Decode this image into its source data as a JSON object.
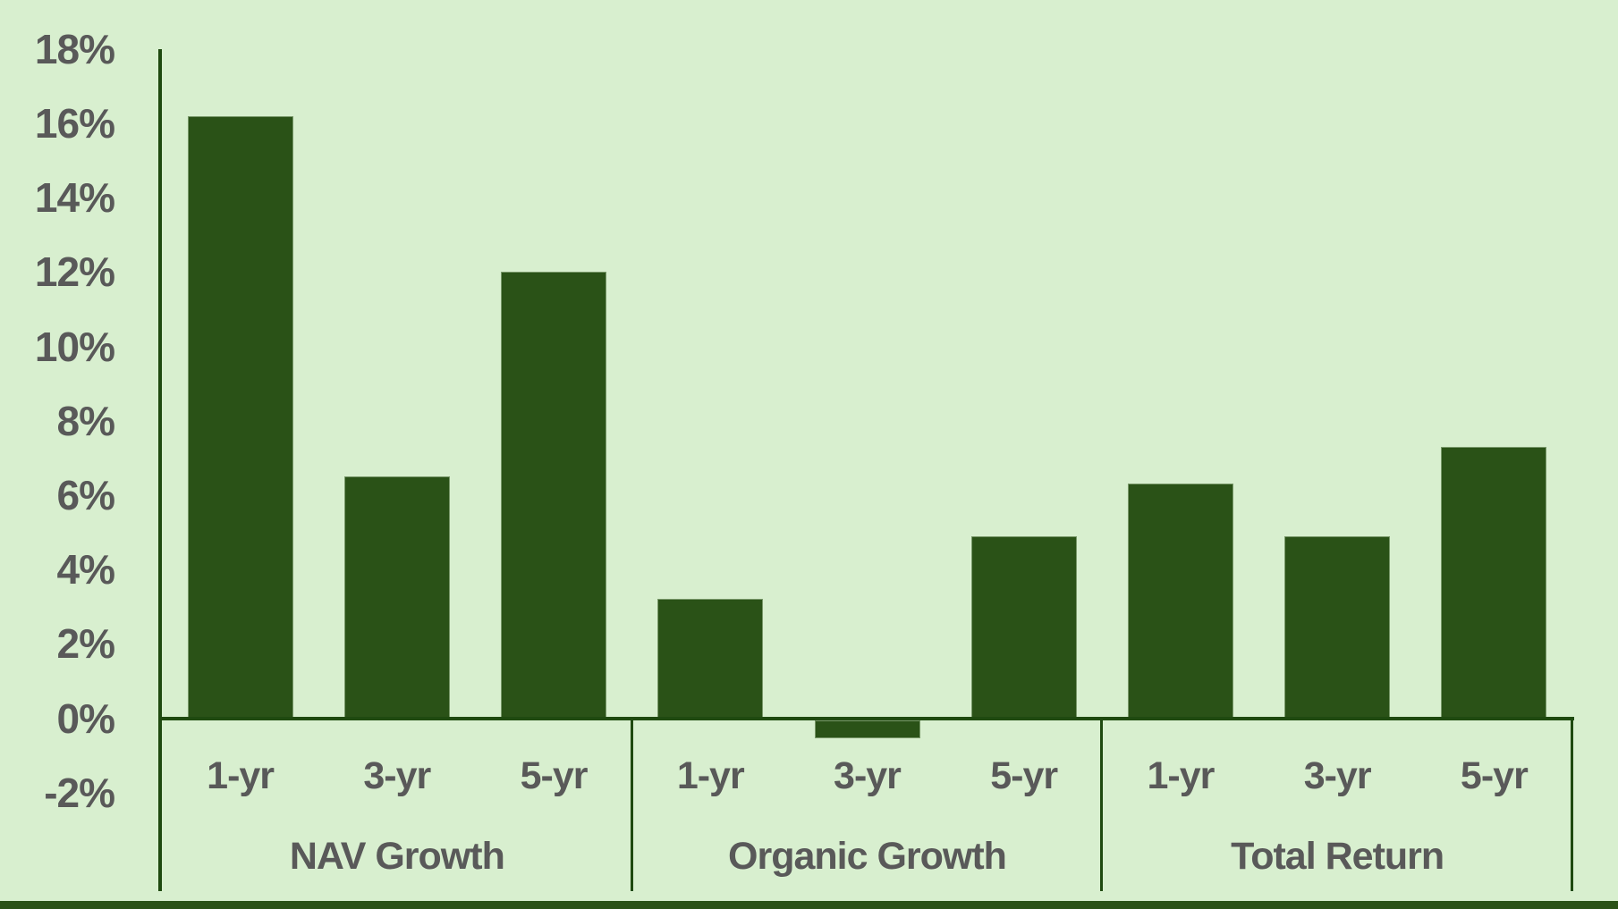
{
  "chart_data": {
    "type": "bar",
    "title": "",
    "groups": [
      {
        "label": "NAV Growth",
        "categories": [
          "1-yr",
          "3-yr",
          "5-yr"
        ],
        "values": [
          16.2,
          6.5,
          12.0
        ]
      },
      {
        "label": "Organic Growth",
        "categories": [
          "1-yr",
          "3-yr",
          "5-yr"
        ],
        "values": [
          3.2,
          -0.5,
          4.9
        ]
      },
      {
        "label": "Total Return",
        "categories": [
          "1-yr",
          "3-yr",
          "5-yr"
        ],
        "values": [
          6.3,
          4.9,
          7.3
        ]
      }
    ],
    "y_axis": {
      "min": -2,
      "max": 18,
      "step": 2,
      "tick_labels": [
        "18%",
        "16%",
        "14%",
        "12%",
        "10%",
        "8%",
        "6%",
        "4%",
        "2%",
        "0%",
        "-2%"
      ]
    },
    "grid": false,
    "legend": false
  },
  "colors": {
    "background": "#d8efcf",
    "bar": "#2a5217",
    "line": "#1f4a10",
    "text": "#595959",
    "bottom_band": "#2a5217"
  }
}
